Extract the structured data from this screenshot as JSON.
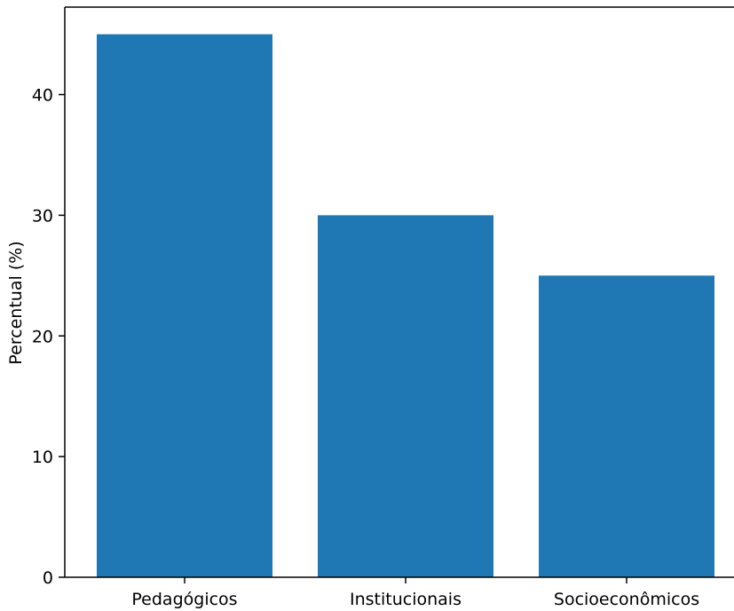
{
  "colors": {
    "bar": "#1f77b4",
    "axis": "#000000",
    "background": "#ffffff"
  },
  "chart_data": {
    "type": "bar",
    "categories": [
      "Pedagógicos",
      "Institucionais",
      "Socioeconômicos"
    ],
    "values": [
      45,
      30,
      25
    ],
    "ylabel": "Percentual (%)",
    "xlabel": "",
    "title": "",
    "ylim": [
      0,
      47.25
    ],
    "yticks": [
      0,
      10,
      20,
      30,
      40
    ],
    "grid": false,
    "legend": false
  }
}
